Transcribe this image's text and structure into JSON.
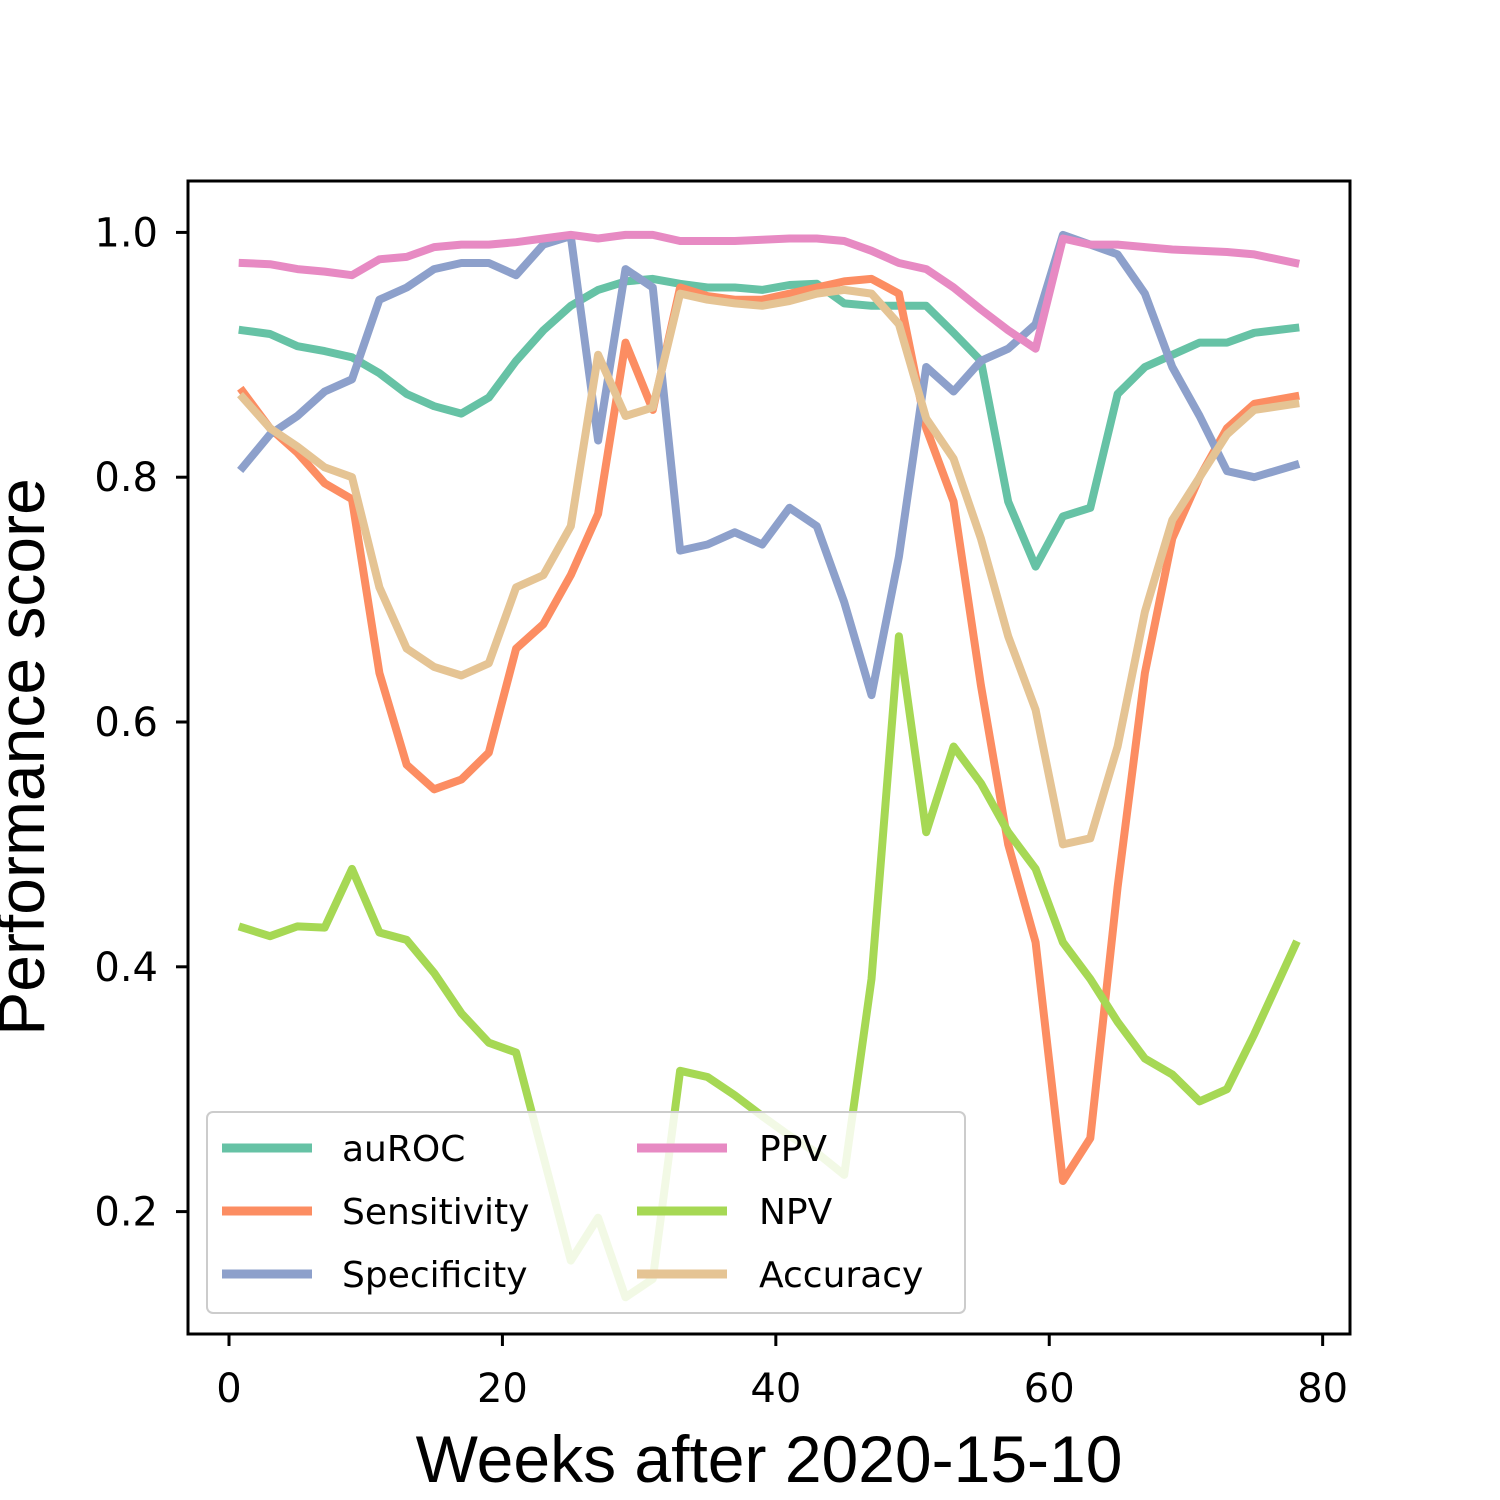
{
  "chart_data": {
    "type": "line",
    "xlabel": "Weeks after 2020-15-10",
    "ylabel": "Performance score",
    "xlim": [
      -3,
      82
    ],
    "ylim": [
      0.1,
      1.042
    ],
    "xticks": [
      0,
      20,
      40,
      60,
      80
    ],
    "yticks": [
      0.2,
      0.4,
      0.6,
      0.8,
      1.0
    ],
    "xtick_labels": [
      "0",
      "20",
      "40",
      "60",
      "80"
    ],
    "ytick_labels": [
      "0.2",
      "0.4",
      "0.6",
      "0.8",
      "1.0"
    ],
    "legend": {
      "position": "lower-left",
      "columns": 2
    },
    "x": [
      1,
      3,
      5,
      7,
      9,
      11,
      13,
      15,
      17,
      19,
      21,
      23,
      25,
      27,
      29,
      31,
      33,
      35,
      37,
      39,
      41,
      43,
      45,
      47,
      49,
      51,
      53,
      55,
      57,
      59,
      61,
      63,
      65,
      67,
      69,
      71,
      73,
      75,
      78
    ],
    "series": [
      {
        "name": "auROC",
        "color": "#66c2a5",
        "values": [
          0.92,
          0.917,
          0.907,
          0.903,
          0.898,
          0.885,
          0.868,
          0.858,
          0.852,
          0.865,
          0.895,
          0.92,
          0.94,
          0.953,
          0.96,
          0.962,
          0.958,
          0.955,
          0.955,
          0.953,
          0.957,
          0.958,
          0.942,
          0.94,
          0.94,
          0.94,
          0.918,
          0.895,
          0.78,
          0.727,
          0.768,
          0.775,
          0.868,
          0.89,
          0.9,
          0.91,
          0.91,
          0.918,
          0.922
        ]
      },
      {
        "name": "Sensitivity",
        "color": "#fc8d62",
        "values": [
          0.87,
          0.84,
          0.82,
          0.795,
          0.782,
          0.64,
          0.565,
          0.545,
          0.553,
          0.575,
          0.66,
          0.68,
          0.72,
          0.77,
          0.91,
          0.855,
          0.955,
          0.948,
          0.945,
          0.945,
          0.95,
          0.955,
          0.96,
          0.962,
          0.95,
          0.84,
          0.78,
          0.63,
          0.5,
          0.42,
          0.225,
          0.26,
          0.465,
          0.64,
          0.75,
          0.8,
          0.84,
          0.86,
          0.866
        ]
      },
      {
        "name": "Specificity",
        "color": "#8da0cb",
        "values": [
          0.808,
          0.835,
          0.85,
          0.87,
          0.88,
          0.945,
          0.955,
          0.97,
          0.975,
          0.975,
          0.965,
          0.99,
          0.997,
          0.83,
          0.97,
          0.955,
          0.74,
          0.745,
          0.755,
          0.745,
          0.775,
          0.76,
          0.698,
          0.622,
          0.735,
          0.89,
          0.87,
          0.895,
          0.905,
          0.925,
          0.998,
          0.99,
          0.982,
          0.95,
          0.89,
          0.85,
          0.805,
          0.8,
          0.81
        ]
      },
      {
        "name": "PPV",
        "color": "#e78ac3",
        "values": [
          0.975,
          0.974,
          0.97,
          0.968,
          0.965,
          0.978,
          0.98,
          0.988,
          0.99,
          0.99,
          0.992,
          0.995,
          0.998,
          0.995,
          0.998,
          0.998,
          0.993,
          0.993,
          0.993,
          0.994,
          0.995,
          0.995,
          0.993,
          0.985,
          0.975,
          0.97,
          0.955,
          0.937,
          0.92,
          0.905,
          0.995,
          0.99,
          0.99,
          0.988,
          0.986,
          0.985,
          0.984,
          0.982,
          0.975
        ]
      },
      {
        "name": "NPV",
        "color": "#a6d854",
        "values": [
          0.432,
          0.425,
          0.433,
          0.432,
          0.48,
          0.428,
          0.422,
          0.395,
          0.362,
          0.338,
          0.33,
          0.245,
          0.16,
          0.195,
          0.13,
          0.145,
          0.315,
          0.31,
          0.295,
          0.278,
          0.262,
          0.248,
          0.23,
          0.39,
          0.67,
          0.51,
          0.58,
          0.55,
          0.51,
          0.48,
          0.42,
          0.39,
          0.355,
          0.325,
          0.312,
          0.29,
          0.3,
          0.345,
          0.418
        ]
      },
      {
        "name": "Accuracy",
        "color": "#e5c494",
        "values": [
          0.865,
          0.84,
          0.825,
          0.808,
          0.8,
          0.71,
          0.66,
          0.645,
          0.638,
          0.648,
          0.71,
          0.72,
          0.76,
          0.9,
          0.85,
          0.857,
          0.95,
          0.945,
          0.942,
          0.94,
          0.944,
          0.95,
          0.953,
          0.95,
          0.925,
          0.848,
          0.815,
          0.75,
          0.67,
          0.61,
          0.5,
          0.505,
          0.58,
          0.69,
          0.765,
          0.8,
          0.835,
          0.855,
          0.86
        ]
      }
    ]
  }
}
